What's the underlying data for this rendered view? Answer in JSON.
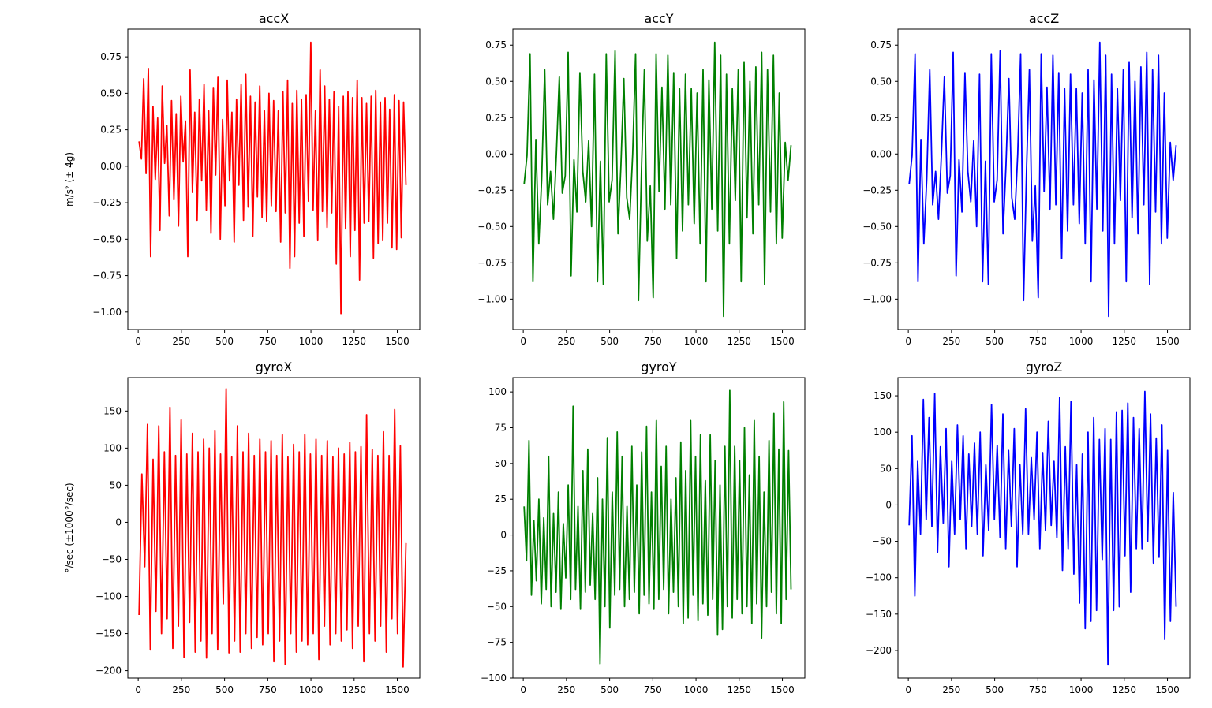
{
  "chart_data": [
    {
      "type": "line",
      "title": "accX",
      "ylabel": "m/s² (± 4g)",
      "color": "#ff0000",
      "xlim": [
        -60,
        1630
      ],
      "ylim": [
        -1.12,
        0.94
      ],
      "xticks": [
        0,
        250,
        500,
        750,
        1000,
        1250,
        1500
      ],
      "yticks": [
        -1.0,
        -0.75,
        -0.5,
        -0.25,
        0.0,
        0.25,
        0.5,
        0.75
      ],
      "series": [
        {
          "values": [
            0.17,
            0.05,
            0.6,
            -0.05,
            0.67,
            -0.62,
            0.41,
            -0.09,
            0.33,
            -0.44,
            0.55,
            0.02,
            0.28,
            -0.34,
            0.45,
            -0.23,
            0.36,
            -0.41,
            0.48,
            0.03,
            0.31,
            -0.62,
            0.66,
            -0.18,
            0.37,
            -0.37,
            0.46,
            -0.1,
            0.56,
            -0.3,
            0.38,
            -0.46,
            0.54,
            -0.06,
            0.61,
            -0.5,
            0.32,
            -0.27,
            0.59,
            -0.1,
            0.37,
            -0.52,
            0.46,
            -0.13,
            0.56,
            -0.37,
            0.63,
            -0.28,
            0.48,
            -0.48,
            0.44,
            -0.21,
            0.55,
            -0.35,
            0.38,
            -0.38,
            0.5,
            -0.27,
            0.45,
            -0.31,
            0.38,
            -0.52,
            0.51,
            -0.32,
            0.59,
            -0.7,
            0.43,
            -0.62,
            0.52,
            -0.39,
            0.46,
            -0.48,
            0.49,
            -0.24,
            0.85,
            -0.3,
            0.38,
            -0.51,
            0.66,
            -0.31,
            0.55,
            -0.42,
            0.46,
            -0.32,
            0.51,
            -0.67,
            0.41,
            -1.01,
            0.48,
            -0.43,
            0.51,
            -0.62,
            0.47,
            -0.44,
            0.59,
            -0.78,
            0.47,
            -0.39,
            0.43,
            -0.38,
            0.48,
            -0.63,
            0.52,
            -0.53,
            0.44,
            -0.51,
            0.47,
            -0.39,
            0.39,
            -0.56,
            0.49,
            -0.57,
            0.45,
            -0.49,
            0.44,
            -0.13
          ]
        }
      ]
    },
    {
      "type": "line",
      "title": "accY",
      "ylabel": "",
      "color": "#008000",
      "xlim": [
        -60,
        1630
      ],
      "ylim": [
        -1.21,
        0.86
      ],
      "xticks": [
        0,
        250,
        500,
        750,
        1000,
        1250,
        1500
      ],
      "yticks": [
        -1.0,
        -0.75,
        -0.5,
        -0.25,
        0.0,
        0.25,
        0.5,
        0.75
      ],
      "series": [
        {
          "values": [
            -0.21,
            -0.01,
            0.69,
            -0.88,
            0.1,
            -0.62,
            -0.17,
            0.58,
            -0.35,
            -0.12,
            -0.45,
            0.0,
            0.53,
            -0.27,
            -0.15,
            0.7,
            -0.84,
            -0.04,
            -0.4,
            0.56,
            -0.12,
            -0.33,
            0.09,
            -0.5,
            0.55,
            -0.88,
            -0.05,
            -0.9,
            0.69,
            -0.33,
            -0.18,
            0.71,
            -0.55,
            -0.08,
            0.52,
            -0.3,
            -0.45,
            0.0,
            0.69,
            -1.01,
            -0.12,
            0.58,
            -0.6,
            -0.22,
            -0.99,
            0.69,
            -0.26,
            0.46,
            -0.38,
            0.68,
            -0.35,
            0.56,
            -0.72,
            0.45,
            -0.53,
            0.55,
            -0.35,
            0.45,
            -0.48,
            0.42,
            -0.62,
            0.58,
            -0.88,
            0.51,
            -0.38,
            0.77,
            -0.53,
            0.68,
            -1.12,
            0.55,
            -0.62,
            0.45,
            -0.32,
            0.58,
            -0.88,
            0.63,
            -0.44,
            0.5,
            -0.55,
            0.6,
            -0.35,
            0.7,
            -0.9,
            0.58,
            -0.4,
            0.68,
            -0.62,
            0.42,
            -0.58,
            0.08,
            -0.18,
            0.06
          ]
        }
      ]
    },
    {
      "type": "line",
      "title": "accZ",
      "ylabel": "",
      "color": "#0000ff",
      "xlim": [
        -60,
        1630
      ],
      "ylim": [
        -1.21,
        0.86
      ],
      "xticks": [
        0,
        250,
        500,
        750,
        1000,
        1250,
        1500
      ],
      "yticks": [
        -1.0,
        -0.75,
        -0.5,
        -0.25,
        0.0,
        0.25,
        0.5,
        0.75
      ],
      "series": [
        {
          "values": [
            -0.21,
            -0.01,
            0.69,
            -0.88,
            0.1,
            -0.62,
            -0.17,
            0.58,
            -0.35,
            -0.12,
            -0.45,
            0.0,
            0.53,
            -0.27,
            -0.15,
            0.7,
            -0.84,
            -0.04,
            -0.4,
            0.56,
            -0.12,
            -0.33,
            0.09,
            -0.5,
            0.55,
            -0.88,
            -0.05,
            -0.9,
            0.69,
            -0.33,
            -0.18,
            0.71,
            -0.55,
            -0.08,
            0.52,
            -0.3,
            -0.45,
            0.0,
            0.69,
            -1.01,
            -0.12,
            0.58,
            -0.6,
            -0.22,
            -0.99,
            0.69,
            -0.26,
            0.46,
            -0.38,
            0.68,
            -0.35,
            0.56,
            -0.72,
            0.45,
            -0.53,
            0.55,
            -0.35,
            0.45,
            -0.48,
            0.42,
            -0.62,
            0.58,
            -0.88,
            0.51,
            -0.38,
            0.77,
            -0.53,
            0.68,
            -1.12,
            0.55,
            -0.62,
            0.45,
            -0.32,
            0.58,
            -0.88,
            0.63,
            -0.44,
            0.5,
            -0.55,
            0.6,
            -0.35,
            0.7,
            -0.9,
            0.58,
            -0.4,
            0.68,
            -0.62,
            0.42,
            -0.58,
            0.08,
            -0.18,
            0.06
          ]
        }
      ]
    },
    {
      "type": "line",
      "title": "gyroX",
      "ylabel": "°/sec (±1000°/sec)",
      "color": "#ff0000",
      "xlim": [
        -60,
        1630
      ],
      "ylim": [
        -210,
        195
      ],
      "xticks": [
        0,
        250,
        500,
        750,
        1000,
        1250,
        1500
      ],
      "yticks": [
        -200,
        -150,
        -100,
        -50,
        0,
        50,
        100,
        150
      ],
      "series": [
        {
          "values": [
            -125,
            65,
            -60,
            132,
            -172,
            85,
            -120,
            130,
            -150,
            95,
            -130,
            155,
            -170,
            90,
            -140,
            138,
            -182,
            92,
            -135,
            120,
            -175,
            95,
            -160,
            112,
            -183,
            100,
            -150,
            123,
            -172,
            92,
            -110,
            180,
            -176,
            88,
            -160,
            130,
            -175,
            95,
            -150,
            120,
            -170,
            90,
            -155,
            112,
            -165,
            95,
            -150,
            110,
            -188,
            90,
            -160,
            118,
            -192,
            88,
            -150,
            105,
            -175,
            95,
            -160,
            118,
            -165,
            92,
            -150,
            112,
            -185,
            90,
            -140,
            110,
            -165,
            88,
            -150,
            100,
            -160,
            92,
            -145,
            108,
            -170,
            95,
            -140,
            102,
            -188,
            145,
            -150,
            98,
            -160,
            90,
            -140,
            122,
            -175,
            90,
            -130,
            152,
            -150,
            103,
            -195,
            -28
          ]
        }
      ]
    },
    {
      "type": "line",
      "title": "gyroY",
      "ylabel": "",
      "color": "#008000",
      "xlim": [
        -60,
        1630
      ],
      "ylim": [
        -100,
        110
      ],
      "xticks": [
        0,
        250,
        500,
        750,
        1000,
        1250,
        1500
      ],
      "yticks": [
        -100,
        -75,
        -50,
        -25,
        0,
        25,
        50,
        75,
        100
      ],
      "series": [
        {
          "values": [
            20,
            -18,
            66,
            -42,
            10,
            -32,
            25,
            -48,
            12,
            -38,
            55,
            -50,
            15,
            -40,
            30,
            -52,
            8,
            -30,
            35,
            -45,
            90,
            -38,
            20,
            -52,
            45,
            -40,
            60,
            -35,
            15,
            -45,
            40,
            -90,
            25,
            -50,
            68,
            -65,
            30,
            -42,
            72,
            -38,
            55,
            -50,
            20,
            -45,
            62,
            -40,
            35,
            -55,
            58,
            -42,
            76,
            -48,
            30,
            -52,
            80,
            -45,
            48,
            -38,
            62,
            -55,
            25,
            -40,
            40,
            -50,
            65,
            -62,
            45,
            -58,
            80,
            -42,
            55,
            -60,
            70,
            -48,
            38,
            -56,
            70,
            -45,
            52,
            -70,
            35,
            -66,
            62,
            -50,
            101,
            -58,
            62,
            -45,
            52,
            -55,
            75,
            -50,
            42,
            -62,
            80,
            -48,
            55,
            -72,
            30,
            -50,
            66,
            -40,
            85,
            -55,
            60,
            -62,
            93,
            -45,
            59,
            -38
          ]
        }
      ]
    },
    {
      "type": "line",
      "title": "gyroZ",
      "ylabel": "",
      "color": "#0000ff",
      "xlim": [
        -60,
        1630
      ],
      "ylim": [
        -238,
        175
      ],
      "xticks": [
        0,
        250,
        500,
        750,
        1000,
        1250,
        1500
      ],
      "yticks": [
        -200,
        -150,
        -100,
        -50,
        0,
        50,
        100,
        150
      ],
      "series": [
        {
          "values": [
            -28,
            95,
            -125,
            60,
            -40,
            145,
            -20,
            120,
            -30,
            153,
            -65,
            80,
            -25,
            105,
            -85,
            60,
            -40,
            110,
            -20,
            95,
            -60,
            70,
            -30,
            85,
            -40,
            100,
            -70,
            55,
            -35,
            138,
            -20,
            82,
            -45,
            125,
            -60,
            75,
            -30,
            105,
            -85,
            55,
            -40,
            132,
            -40,
            65,
            -20,
            100,
            -60,
            72,
            -35,
            115,
            -28,
            60,
            -45,
            148,
            -90,
            80,
            -60,
            142,
            -95,
            55,
            -135,
            70,
            -170,
            100,
            -160,
            120,
            -145,
            90,
            -75,
            105,
            -220,
            90,
            -145,
            128,
            -140,
            130,
            -70,
            140,
            -120,
            120,
            -60,
            105,
            -60,
            156,
            -50,
            125,
            -80,
            92,
            -72,
            110,
            -185,
            75,
            -160,
            17,
            -140
          ]
        }
      ]
    }
  ]
}
